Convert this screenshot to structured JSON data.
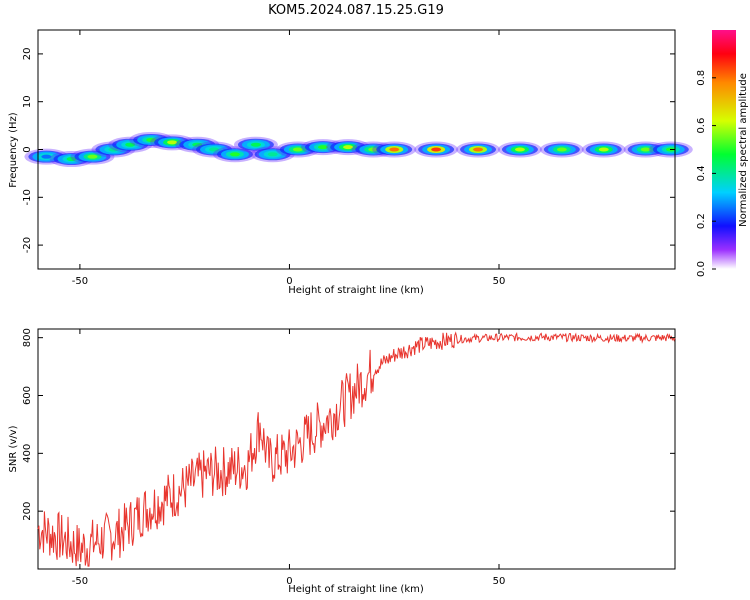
{
  "chart_data": [
    {
      "type": "heatmap",
      "title": "KOM5.2024.087.15.25.G19",
      "xlabel": "Height of straight line (km)",
      "ylabel": "Frequency (Hz)",
      "xlim": [
        -60,
        92
      ],
      "ylim": [
        -25,
        25
      ],
      "xticks": [
        -50,
        0,
        50
      ],
      "yticks": [
        -20,
        -10,
        0,
        10,
        20
      ],
      "colorbar": {
        "label": "Normalized spectral amplitude",
        "range": [
          0,
          1
        ],
        "ticks": [
          "0.0",
          "0.2",
          "0.4",
          "0.6",
          "0.8"
        ],
        "colormap": "gist_rainbow"
      },
      "ridge": [
        {
          "x": -58,
          "y": -1.5,
          "a": 0.25
        },
        {
          "x": -52,
          "y": -2.0,
          "a": 0.45
        },
        {
          "x": -47,
          "y": -1.5,
          "a": 0.55
        },
        {
          "x": -42,
          "y": 0.0,
          "a": 0.4
        },
        {
          "x": -38,
          "y": 1.0,
          "a": 0.45
        },
        {
          "x": -33,
          "y": 2.0,
          "a": 0.5
        },
        {
          "x": -28,
          "y": 1.5,
          "a": 0.6
        },
        {
          "x": -22,
          "y": 1.0,
          "a": 0.45
        },
        {
          "x": -18,
          "y": 0.0,
          "a": 0.4
        },
        {
          "x": -13,
          "y": -1.0,
          "a": 0.5
        },
        {
          "x": -8,
          "y": 1.0,
          "a": 0.45
        },
        {
          "x": -4,
          "y": -1.0,
          "a": 0.4
        },
        {
          "x": 2,
          "y": 0.0,
          "a": 0.55
        },
        {
          "x": 8,
          "y": 0.5,
          "a": 0.5
        },
        {
          "x": 14,
          "y": 0.5,
          "a": 0.6
        },
        {
          "x": 20,
          "y": 0.0,
          "a": 0.55
        },
        {
          "x": 25,
          "y": 0.0,
          "a": 0.8
        },
        {
          "x": 35,
          "y": 0.0,
          "a": 0.85
        },
        {
          "x": 45,
          "y": 0.0,
          "a": 0.8
        },
        {
          "x": 55,
          "y": 0.0,
          "a": 0.6
        },
        {
          "x": 65,
          "y": 0.0,
          "a": 0.55
        },
        {
          "x": 75,
          "y": 0.0,
          "a": 0.6
        },
        {
          "x": 85,
          "y": 0.0,
          "a": 0.55
        },
        {
          "x": 91,
          "y": 0.0,
          "a": 0.5
        }
      ]
    },
    {
      "type": "line",
      "xlabel": "Height of straight line (km)",
      "ylabel": "SNR (v/v)",
      "xlim": [
        -60,
        92
      ],
      "ylim": [
        0,
        830
      ],
      "xticks": [
        -50,
        0,
        50
      ],
      "yticks": [
        200,
        400,
        600,
        800
      ],
      "color": "#e8352e",
      "x": [
        -60,
        -55,
        -50,
        -45,
        -40,
        -35,
        -30,
        -25,
        -20,
        -15,
        -10,
        -7,
        -5,
        0,
        5,
        10,
        15,
        20,
        25,
        30,
        35,
        40,
        45,
        50,
        60,
        70,
        80,
        92
      ],
      "y": [
        140,
        110,
        70,
        100,
        130,
        200,
        240,
        280,
        330,
        340,
        360,
        500,
        370,
        400,
        470,
        530,
        610,
        690,
        740,
        770,
        785,
        795,
        798,
        800,
        802,
        800,
        798,
        800
      ]
    }
  ]
}
